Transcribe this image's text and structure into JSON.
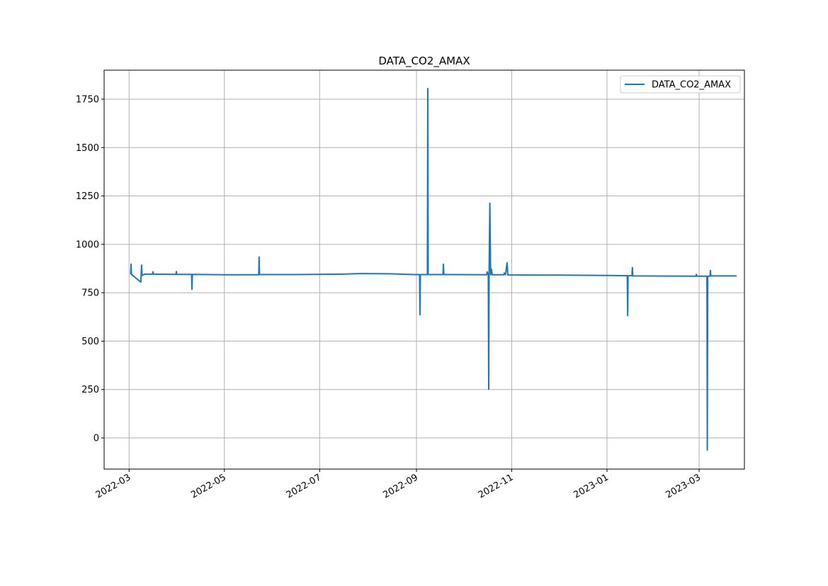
{
  "chart_data": {
    "type": "line",
    "title": "DATA_CO2_AMAX",
    "xlabel": "",
    "ylabel": "",
    "xlim": [
      "2022-02-13",
      "2023-03-30"
    ],
    "ylim": [
      -161,
      1900
    ],
    "grid": true,
    "legend_placement": "top-right",
    "x_ticks": [
      "2022-03",
      "2022-05",
      "2022-07",
      "2022-09",
      "2022-11",
      "2023-01",
      "2023-03"
    ],
    "y_ticks": [
      0,
      250,
      500,
      750,
      1000,
      1250,
      1500,
      1750
    ],
    "series": [
      {
        "name": "DATA_CO2_AMAX",
        "color": "#1f77b4",
        "points": [
          [
            "2022-03-02T00",
            845
          ],
          [
            "2022-03-02T06",
            898
          ],
          [
            "2022-03-02T12",
            845
          ],
          [
            "2022-03-08T12",
            805
          ],
          [
            "2022-03-09T00",
            893
          ],
          [
            "2022-03-09T06",
            840
          ],
          [
            "2022-03-11",
            846
          ],
          [
            "2022-03-16T00",
            846
          ],
          [
            "2022-03-16T06",
            858
          ],
          [
            "2022-03-16T12",
            846
          ],
          [
            "2022-03-31T00",
            845
          ],
          [
            "2022-03-31T06",
            860
          ],
          [
            "2022-03-31T12",
            845
          ],
          [
            "2022-04-10T00",
            845
          ],
          [
            "2022-04-10T06",
            768
          ],
          [
            "2022-04-10T12",
            845
          ],
          [
            "2022-05-01",
            843
          ],
          [
            "2022-05-23T00",
            843
          ],
          [
            "2022-05-23T06",
            935
          ],
          [
            "2022-05-23T12",
            844
          ],
          [
            "2022-06-15",
            844
          ],
          [
            "2022-07-15",
            846
          ],
          [
            "2022-07-28",
            849
          ],
          [
            "2022-08-15",
            848
          ],
          [
            "2022-08-31",
            844
          ],
          [
            "2022-09-03T00",
            844
          ],
          [
            "2022-09-03T06",
            636
          ],
          [
            "2022-09-03T12",
            844
          ],
          [
            "2022-09-08T00",
            844
          ],
          [
            "2022-09-08T06",
            1805
          ],
          [
            "2022-09-08T12",
            844
          ],
          [
            "2022-09-18T00",
            844
          ],
          [
            "2022-09-18T06",
            898
          ],
          [
            "2022-09-18T12",
            844
          ],
          [
            "2022-10-16T00",
            843
          ],
          [
            "2022-10-16T06",
            858
          ],
          [
            "2022-10-17T00",
            843
          ],
          [
            "2022-10-17T06",
            252
          ],
          [
            "2022-10-17T12",
            843
          ],
          [
            "2022-10-18T00",
            1213
          ],
          [
            "2022-10-18T12",
            843
          ],
          [
            "2022-10-19T00",
            872
          ],
          [
            "2022-10-19T12",
            843
          ],
          [
            "2022-10-27T00",
            843
          ],
          [
            "2022-10-27T06",
            852
          ],
          [
            "2022-10-28T00",
            843
          ],
          [
            "2022-10-29T00",
            905
          ],
          [
            "2022-10-29T12",
            842
          ],
          [
            "2022-12-01",
            841
          ],
          [
            "2023-01-01",
            839
          ],
          [
            "2023-01-14T00",
            838
          ],
          [
            "2023-01-14T06",
            632
          ],
          [
            "2023-01-14T12",
            838
          ],
          [
            "2023-01-17T00",
            838
          ],
          [
            "2023-01-17T06",
            880
          ],
          [
            "2023-01-17T12",
            837
          ],
          [
            "2023-02-27T00",
            836
          ],
          [
            "2023-02-27T06",
            845
          ],
          [
            "2023-02-27T12",
            836
          ],
          [
            "2023-03-06T00",
            836
          ],
          [
            "2023-03-06T06",
            -62
          ],
          [
            "2023-03-06T12",
            836
          ],
          [
            "2023-03-08T00",
            836
          ],
          [
            "2023-03-08T06",
            865
          ],
          [
            "2023-03-08T12",
            837
          ],
          [
            "2023-03-25",
            837
          ]
        ]
      }
    ]
  }
}
